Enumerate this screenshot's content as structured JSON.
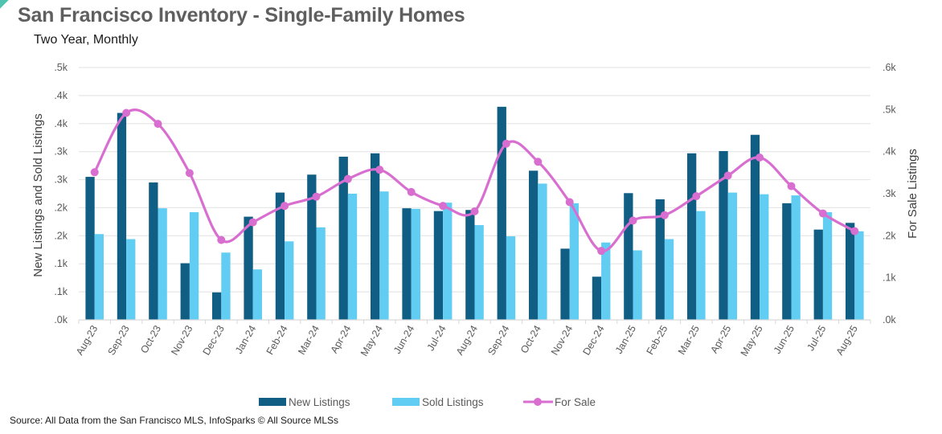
{
  "header": {
    "title": "San Francisco Inventory - Single-Family Homes",
    "subtitle": "Two Year, Monthly"
  },
  "footer": {
    "source": "Source: All Data from the San Francisco MLS, InfoSparks © All Source MLSs"
  },
  "colors": {
    "new_listings": "#115e84",
    "sold_listings": "#62cdf3",
    "for_sale": "#d86fd0",
    "gridline": "#e6e6e6",
    "accent_corner": "#4fc3b0"
  },
  "chart_data": {
    "type": "bar+line",
    "title": "San Francisco Inventory - Single-Family Homes",
    "subtitle": "Two Year, Monthly",
    "categories": [
      "Aug-23",
      "Sep-23",
      "Oct-23",
      "Nov-23",
      "Dec-23",
      "Jan-24",
      "Feb-24",
      "Mar-24",
      "Apr-24",
      "May-24",
      "Jun-24",
      "Jul-24",
      "Aug-24",
      "Sep-24",
      "Oct-24",
      "Nov-24",
      "Dec-24",
      "Jan-25",
      "Feb-25",
      "Mar-25",
      "Apr-25",
      "May-25",
      "Jun-25",
      "Jul-25",
      "Aug-25"
    ],
    "series": [
      {
        "name": "New Listings",
        "type": "bar",
        "axis": "left",
        "values": [
          255,
          369,
          245,
          101,
          49,
          184,
          227,
          259,
          291,
          297,
          199,
          194,
          196,
          380,
          266,
          127,
          77,
          226,
          215,
          297,
          301,
          330,
          208,
          161,
          173
        ]
      },
      {
        "name": "Sold Listings",
        "type": "bar",
        "axis": "left",
        "values": [
          153,
          144,
          199,
          192,
          120,
          90,
          140,
          165,
          225,
          229,
          198,
          209,
          169,
          149,
          243,
          208,
          138,
          124,
          144,
          194,
          227,
          224,
          222,
          192,
          158
        ]
      },
      {
        "name": "For Sale",
        "type": "line",
        "axis": "right",
        "smooth": true,
        "markers": true,
        "values": [
          351,
          492,
          466,
          349,
          190,
          232,
          271,
          293,
          335,
          357,
          304,
          271,
          258,
          419,
          376,
          280,
          164,
          236,
          249,
          294,
          343,
          386,
          318,
          253,
          211
        ]
      }
    ],
    "left_axis": {
      "label": "New Listings and Sold Listings",
      "range": [
        0,
        450
      ],
      "ticks": [
        0,
        50,
        100,
        150,
        200,
        250,
        300,
        350,
        400,
        450
      ],
      "tick_labels": [
        ".0k",
        ".1k",
        ".1k",
        ".2k",
        ".2k",
        ".3k",
        ".3k",
        ".4k",
        ".4k",
        ".5k"
      ]
    },
    "right_axis": {
      "label": "For Sale Listings",
      "range": [
        0,
        600
      ],
      "ticks": [
        0,
        100,
        200,
        300,
        400,
        500,
        600
      ],
      "tick_labels": [
        ".0k",
        ".1k",
        ".2k",
        ".3k",
        ".4k",
        ".5k",
        ".6k"
      ]
    },
    "grid": true,
    "legend": {
      "position": "bottom",
      "entries": [
        "New Listings",
        "Sold Listings",
        "For Sale"
      ]
    }
  }
}
